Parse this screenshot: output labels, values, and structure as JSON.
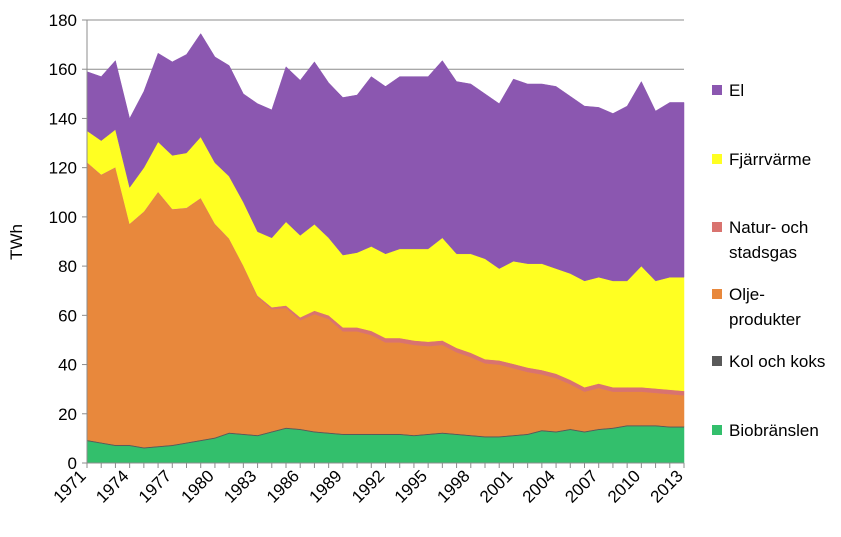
{
  "chart_data": {
    "type": "area",
    "stacked": true,
    "ylabel": "TWh",
    "ylim": [
      0,
      180
    ],
    "yticks": [
      0,
      20,
      40,
      60,
      80,
      100,
      120,
      140,
      160,
      180
    ],
    "xtick_labels": [
      "1971",
      "1974",
      "1977",
      "1980",
      "1983",
      "1986",
      "1989",
      "1992",
      "1995",
      "1998",
      "2001",
      "2004",
      "2007",
      "2010",
      "2013"
    ],
    "grid": true,
    "legend_position": "right",
    "x": [
      1971,
      1972,
      1973,
      1974,
      1975,
      1976,
      1977,
      1978,
      1979,
      1980,
      1981,
      1982,
      1983,
      1984,
      1985,
      1986,
      1987,
      1988,
      1989,
      1990,
      1991,
      1992,
      1993,
      1994,
      1995,
      1996,
      1997,
      1998,
      1999,
      2000,
      2001,
      2002,
      2003,
      2004,
      2005,
      2006,
      2007,
      2008,
      2009,
      2010,
      2011,
      2012,
      2013
    ],
    "series": [
      {
        "name": "Biobränslen",
        "color": "#33bf6c",
        "values": [
          9,
          8,
          7,
          7,
          6,
          6.5,
          7,
          8,
          9,
          10,
          12,
          11.5,
          11,
          12.5,
          14,
          13.5,
          12.5,
          12,
          11.5,
          11.5,
          11.5,
          11.5,
          11.5,
          11,
          11.5,
          12,
          11.5,
          11,
          10.5,
          10.5,
          11,
          11.5,
          13,
          12.5,
          13.5,
          12.5,
          13.5,
          14,
          15,
          15,
          15,
          14.5,
          14.5
        ]
      },
      {
        "name": "Kol och koks",
        "color": "#595959",
        "values": [
          0.4,
          0.4,
          0.4,
          0.4,
          0.4,
          0.4,
          0.4,
          0.4,
          0.4,
          0.4,
          0.4,
          0.4,
          0.4,
          0.4,
          0.4,
          0.4,
          0.4,
          0.4,
          0.4,
          0.4,
          0.4,
          0.4,
          0.4,
          0.4,
          0.4,
          0.4,
          0.4,
          0.4,
          0.4,
          0.4,
          0.4,
          0.4,
          0.4,
          0.4,
          0.4,
          0.4,
          0.4,
          0.4,
          0.4,
          0.4,
          0.4,
          0.4,
          0.4
        ]
      },
      {
        "name": "Olje-\nprodukter",
        "color": "#e8883c",
        "values": [
          112.6,
          108.6,
          112.6,
          89.6,
          95.6,
          103.1,
          95.6,
          95.1,
          98.1,
          86.6,
          78.6,
          68.1,
          56.1,
          49.6,
          48.6,
          44.1,
          47.6,
          46.1,
          41.6,
          41.6,
          40.1,
          37.1,
          37.1,
          36.6,
          35.6,
          35.6,
          33.1,
          31.6,
          29.6,
          29.1,
          27.1,
          25.1,
          22.6,
          21.6,
          18.1,
          16.1,
          16.6,
          14.6,
          13.6,
          13.6,
          13.1,
          13.1,
          12.6
        ]
      },
      {
        "name": "Natur- och\nstadsgas",
        "color": "#d9736f",
        "values": [
          0.2,
          0.2,
          0.2,
          0.2,
          0.2,
          0.2,
          0.2,
          0.2,
          0.2,
          0.2,
          0.2,
          0.2,
          0.5,
          0.8,
          1,
          1.2,
          1.4,
          1.5,
          1.6,
          1.6,
          1.7,
          1.8,
          1.8,
          1.8,
          1.8,
          1.8,
          1.8,
          1.8,
          1.7,
          1.7,
          1.8,
          1.8,
          1.8,
          1.8,
          1.8,
          1.8,
          1.8,
          1.8,
          1.8,
          1.8,
          1.8,
          1.8,
          1.8
        ]
      },
      {
        "name": "Fjärrvärme",
        "color": "#ffff22",
        "values": [
          12.8,
          13.8,
          15.3,
          14.8,
          17.8,
          20.3,
          21.8,
          22.3,
          24.8,
          24.8,
          25.3,
          25.8,
          26,
          28.2,
          34,
          33.3,
          35.1,
          31.5,
          29.4,
          30.4,
          34.3,
          34.2,
          36.2,
          37.2,
          37.7,
          41.7,
          38.2,
          40.2,
          40.8,
          37.3,
          41.7,
          42.2,
          43.2,
          42.7,
          43.2,
          43.2,
          43.2,
          43.2,
          43.2,
          49.2,
          43.7,
          45.7,
          46.2
        ]
      },
      {
        "name": "El",
        "color": "#8b57b0",
        "values": [
          24,
          26,
          28,
          28,
          31,
          36,
          38,
          40,
          42,
          43,
          45,
          44,
          52,
          52,
          63,
          63,
          66,
          63,
          64,
          64,
          69,
          68,
          70,
          70,
          70,
          72,
          70,
          69,
          67,
          67,
          74,
          73,
          73,
          74,
          72,
          71,
          69,
          68,
          71,
          75,
          69,
          71,
          71
        ]
      }
    ]
  }
}
